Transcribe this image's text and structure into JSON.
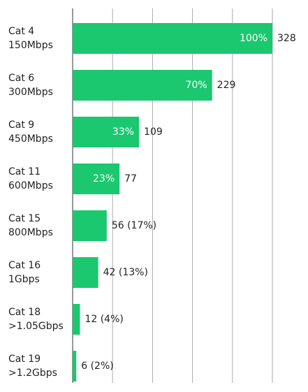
{
  "chart_data": {
    "type": "hbar",
    "categories": [
      [
        "Cat 4",
        "150Mbps"
      ],
      [
        "Cat 6",
        "300Mbps"
      ],
      [
        "Cat 9",
        "450Mbps"
      ],
      [
        "Cat 11",
        "600Mbps"
      ],
      [
        "Cat 15",
        "800Mbps"
      ],
      [
        "Cat 16",
        "1Gbps"
      ],
      [
        "Cat 18",
        ">1.05Gbps"
      ],
      [
        "Cat 19",
        ">1.2Gbps"
      ]
    ],
    "values": [
      328,
      229,
      109,
      77,
      56,
      42,
      12,
      6
    ],
    "value_labels": [
      "328",
      "229",
      "109",
      "77",
      "56 (17%)",
      "42 (13%)",
      "12 (4%)",
      "6 (2%)"
    ],
    "share_labels": [
      "100%",
      "70%",
      "33%",
      "23%"
    ],
    "color": "#1bc76f",
    "xlim": [
      0,
      328
    ],
    "xticks": [
      0,
      65.6,
      131.2,
      196.8,
      262.4,
      328
    ],
    "grid": true
  }
}
